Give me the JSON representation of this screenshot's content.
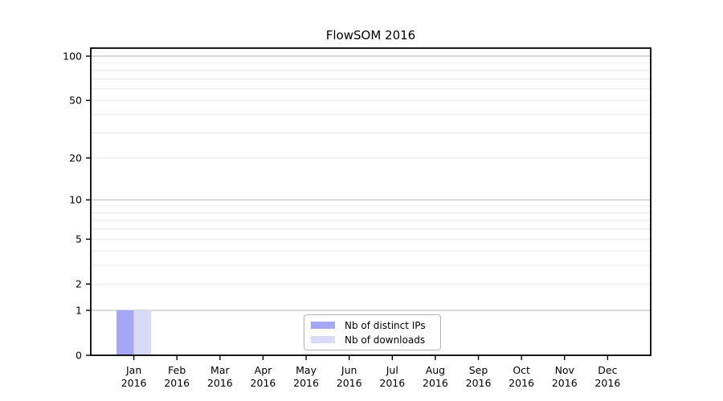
{
  "window": {
    "background": "#ffffff"
  },
  "chart_data": {
    "type": "bar",
    "title": "FlowSOM 2016",
    "x_tick_months": [
      "Jan",
      "Feb",
      "Mar",
      "Apr",
      "May",
      "Jun",
      "Jul",
      "Aug",
      "Sep",
      "Oct",
      "Nov",
      "Dec"
    ],
    "x_tick_year": "2016",
    "y_ticks": [
      0,
      1,
      2,
      5,
      10,
      20,
      50,
      100
    ],
    "y_major_gridlines": [
      1,
      10,
      100
    ],
    "y_minor_gridlines": [
      2,
      3,
      4,
      5,
      6,
      7,
      8,
      9,
      20,
      30,
      40,
      50,
      60,
      70,
      80,
      90
    ],
    "y_scale": "log10(1+x)",
    "ylim": [
      0,
      113
    ],
    "grid": "on",
    "legend_position": "inside-bottom-center",
    "series": [
      {
        "name": "Nb of distinct IPs",
        "color": "#a6a6f6",
        "values": [
          1,
          0,
          0,
          0,
          0,
          0,
          0,
          0,
          0,
          0,
          0,
          0
        ]
      },
      {
        "name": "Nb of downloads",
        "color": "#d9d9f8",
        "values": [
          1,
          0,
          0,
          0,
          0,
          0,
          0,
          0,
          0,
          0,
          0,
          0
        ]
      }
    ],
    "colors": {
      "major_grid": "#c0c0c0",
      "minor_grid": "#ebebeb",
      "spine": "#000000",
      "tick_text": "#000000"
    }
  }
}
